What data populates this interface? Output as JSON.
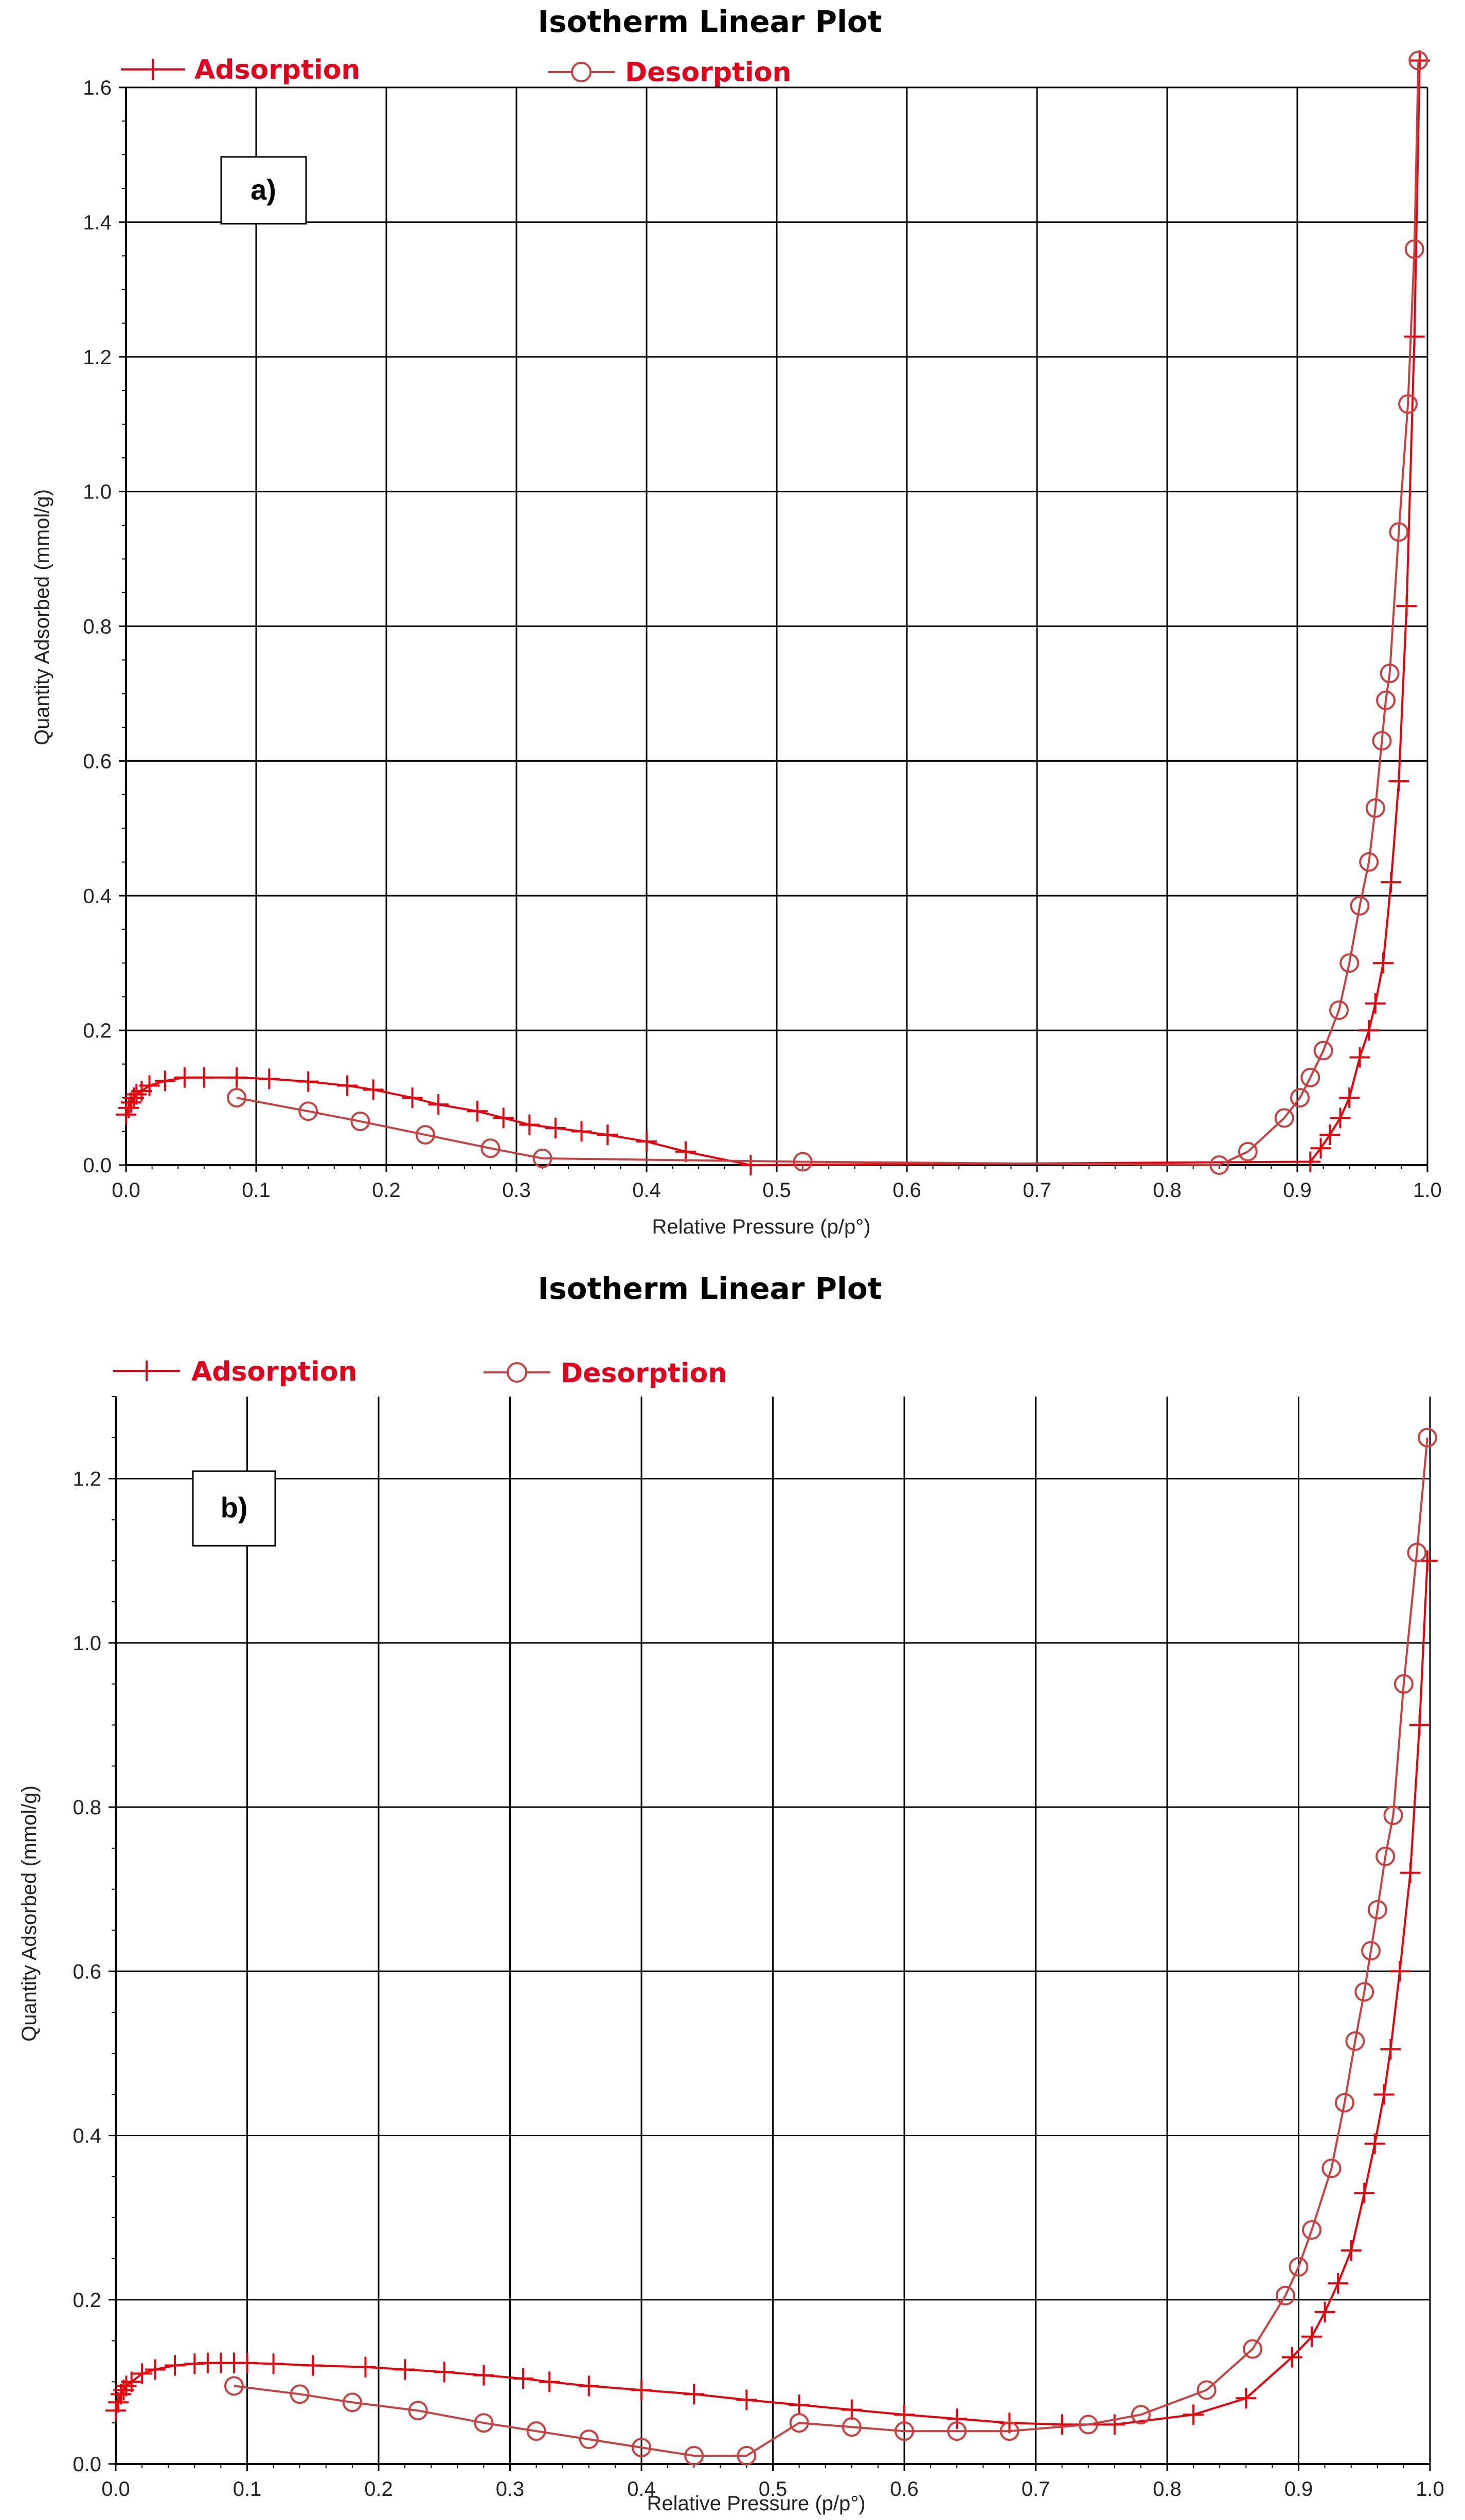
{
  "chart_data": [
    {
      "id": "a",
      "type": "line",
      "title": "Isotherm Linear Plot",
      "panel_label": "a)",
      "xlabel": "Relative Pressure (p/p°)",
      "ylabel": "Quantity Adsorbed (mmol/g)",
      "xlim": [
        0.0,
        1.0
      ],
      "ylim": [
        0.0,
        1.6
      ],
      "xticks": [
        "0.0",
        "0.1",
        "0.2",
        "0.3",
        "0.4",
        "0.5",
        "0.6",
        "0.7",
        "0.8",
        "0.9",
        "1.0"
      ],
      "yticks": [
        "0.0",
        "0.2",
        "0.4",
        "0.6",
        "0.8",
        "1.0",
        "1.2",
        "1.4",
        "1.6"
      ],
      "grid": true,
      "legend_position": "top-left",
      "series": [
        {
          "name": "Adsorption",
          "marker": "plus",
          "color": "#e8000b",
          "x": [
            0.0,
            0.002,
            0.004,
            0.006,
            0.008,
            0.012,
            0.018,
            0.03,
            0.045,
            0.06,
            0.085,
            0.11,
            0.14,
            0.17,
            0.19,
            0.22,
            0.24,
            0.27,
            0.29,
            0.31,
            0.33,
            0.35,
            0.37,
            0.4,
            0.43,
            0.48,
            0.91,
            0.918,
            0.925,
            0.933,
            0.94,
            0.948,
            0.955,
            0.96,
            0.966,
            0.972,
            0.978,
            0.984,
            0.99,
            0.994
          ],
          "y": [
            0.075,
            0.085,
            0.093,
            0.1,
            0.105,
            0.11,
            0.118,
            0.125,
            0.13,
            0.13,
            0.13,
            0.128,
            0.124,
            0.118,
            0.112,
            0.1,
            0.09,
            0.08,
            0.07,
            0.06,
            0.055,
            0.05,
            0.045,
            0.035,
            0.02,
            0.0,
            0.005,
            0.025,
            0.045,
            0.07,
            0.1,
            0.16,
            0.2,
            0.24,
            0.3,
            0.42,
            0.57,
            0.83,
            1.23,
            1.64
          ]
        },
        {
          "name": "Desorption",
          "marker": "circle",
          "color": "#c84040",
          "x": [
            0.993,
            0.99,
            0.985,
            0.978,
            0.971,
            0.968,
            0.965,
            0.96,
            0.955,
            0.948,
            0.94,
            0.932,
            0.92,
            0.91,
            0.902,
            0.89,
            0.862,
            0.84,
            0.52,
            0.32,
            0.28,
            0.23,
            0.18,
            0.14,
            0.085
          ],
          "y": [
            1.64,
            1.36,
            1.13,
            0.94,
            0.73,
            0.69,
            0.63,
            0.53,
            0.45,
            0.385,
            0.3,
            0.23,
            0.17,
            0.13,
            0.1,
            0.07,
            0.02,
            0.0,
            0.005,
            0.01,
            0.025,
            0.045,
            0.065,
            0.08,
            0.1
          ]
        }
      ]
    },
    {
      "id": "b",
      "type": "line",
      "title": "Isotherm Linear Plot",
      "panel_label": "b)",
      "xlabel": "Relative Pressure (p/p°)",
      "ylabel": "Quantity Adsorbed (mmol/g)",
      "xlim": [
        0.0,
        1.0
      ],
      "ylim": [
        0.0,
        1.3
      ],
      "xticks": [
        "0.0",
        "0.1",
        "0.2",
        "0.3",
        "0.4",
        "0.5",
        "0.6",
        "0.7",
        "0.8",
        "0.9",
        "1.0"
      ],
      "yticks": [
        "0.0",
        "0.2",
        "0.4",
        "0.6",
        "0.8",
        "1.0",
        "1.2"
      ],
      "grid": true,
      "legend_position": "top-left",
      "series": [
        {
          "name": "Adsorption",
          "marker": "plus",
          "color": "#e8000b",
          "x": [
            0.0,
            0.002,
            0.004,
            0.006,
            0.008,
            0.012,
            0.02,
            0.03,
            0.045,
            0.06,
            0.07,
            0.08,
            0.09,
            0.1,
            0.12,
            0.15,
            0.19,
            0.22,
            0.25,
            0.28,
            0.31,
            0.33,
            0.36,
            0.4,
            0.44,
            0.48,
            0.52,
            0.56,
            0.6,
            0.64,
            0.68,
            0.72,
            0.76,
            0.82,
            0.86,
            0.895,
            0.91,
            0.92,
            0.93,
            0.94,
            0.95,
            0.958,
            0.965,
            0.97,
            0.977,
            0.985,
            0.992,
            0.998
          ],
          "y": [
            0.065,
            0.075,
            0.085,
            0.09,
            0.095,
            0.1,
            0.11,
            0.115,
            0.12,
            0.122,
            0.123,
            0.123,
            0.123,
            0.123,
            0.122,
            0.12,
            0.118,
            0.115,
            0.112,
            0.108,
            0.104,
            0.1,
            0.095,
            0.09,
            0.085,
            0.078,
            0.072,
            0.066,
            0.06,
            0.055,
            0.05,
            0.048,
            0.048,
            0.06,
            0.08,
            0.13,
            0.155,
            0.185,
            0.22,
            0.26,
            0.33,
            0.39,
            0.45,
            0.505,
            0.6,
            0.72,
            0.9,
            1.1
          ]
        },
        {
          "name": "Desorption",
          "marker": "circle",
          "color": "#c84040",
          "x": [
            0.998,
            0.99,
            0.98,
            0.972,
            0.966,
            0.96,
            0.955,
            0.95,
            0.943,
            0.935,
            0.925,
            0.91,
            0.9,
            0.89,
            0.865,
            0.83,
            0.78,
            0.74,
            0.68,
            0.64,
            0.6,
            0.56,
            0.52,
            0.48,
            0.44,
            0.4,
            0.36,
            0.32,
            0.28,
            0.23,
            0.18,
            0.14,
            0.09
          ],
          "y": [
            1.25,
            1.11,
            0.95,
            0.79,
            0.74,
            0.675,
            0.625,
            0.575,
            0.515,
            0.44,
            0.36,
            0.285,
            0.24,
            0.205,
            0.14,
            0.09,
            0.06,
            0.048,
            0.04,
            0.04,
            0.04,
            0.045,
            0.05,
            0.01,
            0.01,
            0.02,
            0.03,
            0.04,
            0.05,
            0.065,
            0.075,
            0.085,
            0.095
          ]
        }
      ]
    }
  ]
}
